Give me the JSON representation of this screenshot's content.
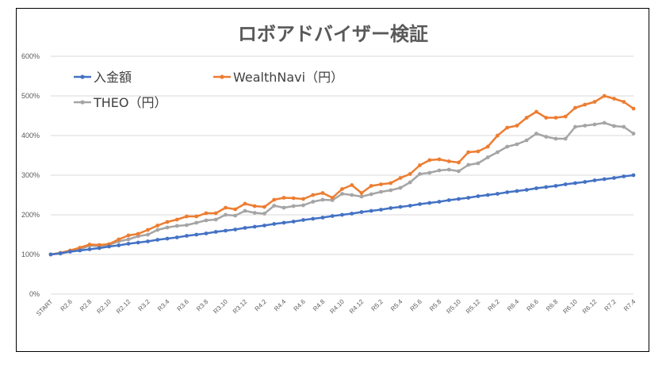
{
  "chart_data": {
    "type": "line",
    "title": "ロボアドバイザー検証",
    "xlabel": "",
    "ylabel": "",
    "ylim": [
      0,
      600
    ],
    "y_tick_labels": [
      "0%",
      "100%",
      "200%",
      "300%",
      "400%",
      "500%",
      "600%"
    ],
    "grid": "horizontal",
    "legend": "top-left",
    "categories": [
      "START",
      "R2.5",
      "R2.6",
      "R2.7",
      "R2.8",
      "R2.9",
      "R2.10",
      "R2.11",
      "R2.12",
      "R3.1",
      "R3.2",
      "R3.3",
      "R3.4",
      "R3.5",
      "R3.6",
      "R3.7",
      "R3.8",
      "R3.9",
      "R3.10",
      "R3.11",
      "R3.12",
      "R4.1",
      "R4.2",
      "R4.3",
      "R4.4",
      "R4.5",
      "R4.6",
      "R4.7",
      "R4.8",
      "R4.9",
      "R4.10",
      "R4.11",
      "R4.12",
      "R5.1",
      "R5.2",
      "R5.3",
      "R5.4",
      "R5.5",
      "R5.6",
      "R5.7",
      "R5.8",
      "R5.9",
      "R5.10",
      "R5.11",
      "R5.12",
      "R6.1",
      "R6.2",
      "R6.3",
      "R6.4",
      "R6.5",
      "R6.6",
      "R6.7",
      "R6.8",
      "R6.9",
      "R6.10",
      "R6.11",
      "R6.12",
      "R7.1",
      "R7.2",
      "R7.3",
      "R7.4"
    ],
    "x_tick_labels": [
      "START",
      "R2.6",
      "R2.8",
      "R2.10",
      "R2.12",
      "R3.2",
      "R3.4",
      "R3.6",
      "R3.8",
      "R3.10",
      "R3.12",
      "R4.2",
      "R4.4",
      "R4.6",
      "R4.8",
      "R4.10",
      "R4.12",
      "R5.2",
      "R5.4",
      "R5.6",
      "R5.8",
      "R5.10",
      "R5.12",
      "R6.2",
      "R6.4",
      "R6.6",
      "R6.8",
      "R6.10",
      "R6.12",
      "R7.2",
      "R7.4"
    ],
    "series": [
      {
        "name": "入金額",
        "color": "#4472C4",
        "values": [
          100,
          103,
          107,
          110,
          113,
          116,
          120,
          123,
          127,
          130,
          133,
          137,
          140,
          143,
          147,
          150,
          153,
          157,
          160,
          163,
          167,
          170,
          173,
          177,
          180,
          183,
          187,
          190,
          193,
          197,
          200,
          203,
          207,
          210,
          213,
          217,
          220,
          223,
          227,
          230,
          233,
          237,
          240,
          243,
          247,
          250,
          253,
          257,
          260,
          263,
          267,
          270,
          273,
          277,
          280,
          283,
          287,
          290,
          293,
          297,
          300
        ]
      },
      {
        "name": "WealthNavi（円）",
        "color": "#ED7D31",
        "values": [
          100,
          104,
          110,
          117,
          125,
          124,
          126,
          138,
          148,
          152,
          162,
          173,
          182,
          188,
          196,
          196,
          204,
          204,
          218,
          214,
          228,
          222,
          220,
          238,
          243,
          242,
          240,
          250,
          255,
          243,
          265,
          275,
          255,
          273,
          277,
          280,
          293,
          303,
          325,
          338,
          340,
          335,
          332,
          358,
          360,
          372,
          400,
          420,
          425,
          445,
          460,
          445,
          445,
          448,
          470,
          478,
          485,
          500,
          493,
          485,
          468
        ]
      },
      {
        "name": "THEO（円）",
        "color": "#A5A5A5",
        "values": [
          100,
          102,
          108,
          113,
          122,
          121,
          124,
          133,
          138,
          146,
          150,
          162,
          168,
          172,
          174,
          180,
          186,
          188,
          200,
          198,
          210,
          205,
          203,
          223,
          218,
          222,
          224,
          233,
          238,
          237,
          253,
          250,
          246,
          252,
          258,
          262,
          268,
          282,
          303,
          306,
          312,
          314,
          310,
          326,
          330,
          345,
          358,
          372,
          378,
          388,
          405,
          397,
          392,
          392,
          422,
          425,
          428,
          432,
          424,
          422,
          405
        ]
      }
    ]
  }
}
